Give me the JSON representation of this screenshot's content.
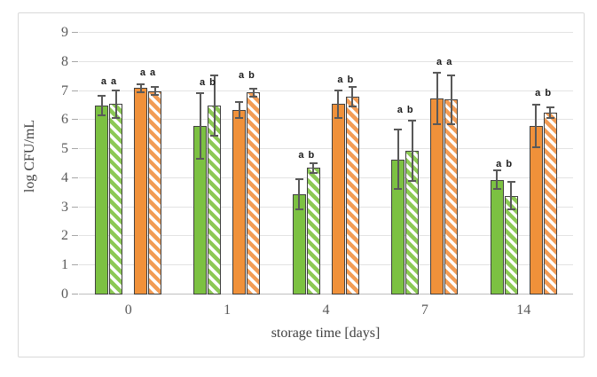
{
  "chart_data": {
    "type": "bar",
    "title": "",
    "xlabel": "storage time [days]",
    "ylabel": "log CFU/mL",
    "ylim": [
      0,
      9
    ],
    "yticks": [
      0,
      1,
      2,
      3,
      4,
      5,
      6,
      7,
      8,
      9
    ],
    "grid": true,
    "legend": "none",
    "categories": [
      "0",
      "1",
      "4",
      "7",
      "14"
    ],
    "series": [
      {
        "name": "green-solid",
        "fill": "solid",
        "color": "#7cc142",
        "values": [
          6.5,
          5.8,
          3.45,
          4.65,
          3.95
        ],
        "errors": [
          0.3,
          1.1,
          0.5,
          1.0,
          0.3
        ]
      },
      {
        "name": "green-hatched",
        "fill": "hatched",
        "color": "#8cc955",
        "values": [
          6.55,
          6.5,
          4.35,
          4.95,
          3.4
        ],
        "errors": [
          0.45,
          1.0,
          0.15,
          1.0,
          0.45
        ]
      },
      {
        "name": "orange-solid",
        "fill": "solid",
        "color": "#f0913a",
        "values": [
          7.1,
          6.35,
          6.55,
          6.75,
          5.8
        ],
        "errors": [
          0.1,
          0.25,
          0.45,
          0.85,
          0.7
        ]
      },
      {
        "name": "orange-hatched",
        "fill": "hatched",
        "color": "#f29c55",
        "values": [
          7.0,
          6.95,
          6.8,
          6.7,
          6.25
        ],
        "errors": [
          0.1,
          0.1,
          0.3,
          0.8,
          0.15
        ]
      }
    ],
    "annotations": {
      "green_pair": {
        "texts": [
          "a a",
          "a b",
          "a b",
          "a b",
          "a b"
        ],
        "y": [
          7.15,
          7.1,
          4.6,
          6.15,
          4.3
        ]
      },
      "orange_pair": {
        "texts": [
          "a a",
          "a b",
          "a b",
          "a a",
          "a b"
        ],
        "y": [
          7.45,
          7.35,
          7.2,
          7.8,
          6.75
        ]
      }
    },
    "colors": {
      "frame_border": "#d9d9d9",
      "gridline": "#e3e3e3",
      "axis_line": "#bfbfbf",
      "error_bar": "#595959",
      "bar_border": "#404040",
      "tick_text": "#595959",
      "annotation_text": "#1a1a1a"
    }
  }
}
